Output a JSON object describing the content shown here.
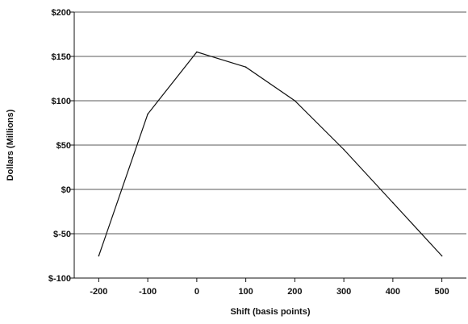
{
  "chart_data": {
    "type": "line",
    "xlabel": "Shift (basis points)",
    "ylabel": "Dollars (Millions)",
    "x_ticks": [
      "-200",
      "-100",
      "0",
      "100",
      "200",
      "300",
      "400",
      "500"
    ],
    "y_ticks": [
      "$200",
      "$150",
      "$100",
      "$50",
      "$0",
      "$-50",
      "$-100"
    ],
    "xlim": [
      -250,
      550
    ],
    "ylim": [
      -100,
      200
    ],
    "grid": "horizontal",
    "series": [
      {
        "x": [
          -200,
          -100,
          0,
          100,
          200,
          300,
          400,
          500
        ],
        "y": [
          -75,
          85,
          155,
          138,
          100,
          45,
          -15,
          -75
        ]
      }
    ]
  }
}
